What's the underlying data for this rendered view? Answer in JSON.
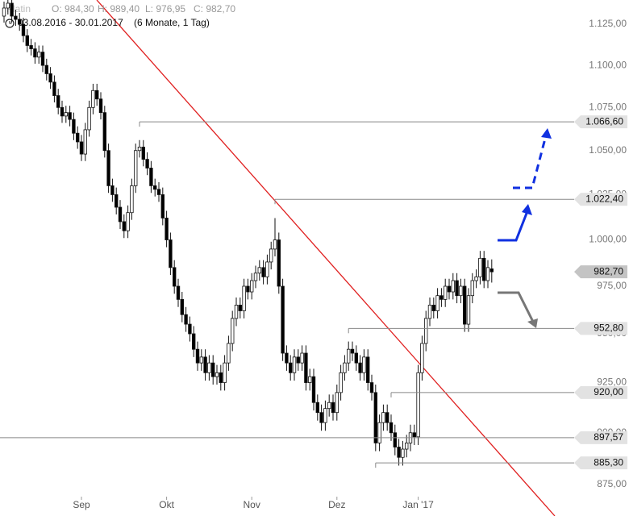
{
  "chart_data": {
    "type": "candlestick",
    "header": {
      "name": "Platin",
      "open": "O: 984,30",
      "high": "H: 989,40",
      "low": "L: 976,95",
      "close": "C: 982,70",
      "range": "03.08.2016 - 30.01.2017",
      "period": "(6 Monate, 1 Tag)"
    },
    "log_scale": true,
    "ylim": [
      860,
      1140
    ],
    "yticks": [
      {
        "value": 875,
        "label": "875,00"
      },
      {
        "value": 900,
        "label": "900,00"
      },
      {
        "value": 925,
        "label": "925,00"
      },
      {
        "value": 950,
        "label": "950,00"
      },
      {
        "value": 975,
        "label": "975,00"
      },
      {
        "value": 1000,
        "label": "1.000,00"
      },
      {
        "value": 1025,
        "label": "1.025,00"
      },
      {
        "value": 1050,
        "label": "1.050,00"
      },
      {
        "value": 1075,
        "label": "1.075,00"
      },
      {
        "value": 1100,
        "label": "1.100,00"
      },
      {
        "value": 1125,
        "label": "1.125,00"
      }
    ],
    "xticks": [
      {
        "value": 20,
        "label": "Sep"
      },
      {
        "value": 42,
        "label": "Okt"
      },
      {
        "value": 64,
        "label": "Nov"
      },
      {
        "value": 86,
        "label": "Dez"
      },
      {
        "value": 107,
        "label": "Jan '17"
      }
    ],
    "up_color": "#ffffff",
    "down_color": "#000000",
    "series": [
      {
        "open": [
          1130,
          1135,
          1138,
          1130,
          1128,
          1125,
          1118,
          1112,
          1110,
          1105,
          1108,
          1100,
          1095,
          1090,
          1082,
          1075,
          1070,
          1072,
          1068,
          1060,
          1055,
          1048,
          1062,
          1075,
          1085,
          1080,
          1072,
          1050,
          1030,
          1025,
          1018,
          1010,
          1005,
          1015,
          1030,
          1050,
          1052,
          1045,
          1040,
          1030,
          1028,
          1025,
          1012,
          1000,
          985,
          975,
          968,
          960,
          955,
          950,
          942,
          935,
          938,
          930,
          935,
          928,
          930,
          925,
          935,
          945,
          958,
          965,
          962,
          975,
          972,
          978,
          982,
          985,
          980,
          988,
          995,
          1000,
          975,
          940,
          935,
          930,
          938,
          935,
          940,
          925,
          928,
          915,
          910,
          905,
          912,
          915,
          910,
          920,
          930,
          935,
          942,
          940,
          935,
          930,
          938,
          925,
          920,
          895,
          905,
          910,
          905,
          900,
          893,
          888,
          892,
          895,
          900,
          898,
          930,
          945,
          958,
          965,
          962,
          970,
          968,
          975,
          972,
          978,
          970,
          975,
          955,
          970,
          978,
          980,
          990,
          978,
          984.3
        ],
        "high": [
          1139,
          1142,
          1142,
          1134,
          1132,
          1129,
          1122,
          1116,
          1114,
          1112,
          1112,
          1104,
          1099,
          1094,
          1086,
          1079,
          1076,
          1076,
          1072,
          1064,
          1059,
          1066,
          1079,
          1089,
          1089,
          1084,
          1076,
          1054,
          1034,
          1029,
          1022,
          1014,
          1019,
          1034,
          1054,
          1056,
          1056,
          1049,
          1044,
          1034,
          1032,
          1029,
          1016,
          1004,
          989,
          979,
          972,
          964,
          959,
          954,
          946,
          942,
          942,
          939,
          939,
          934,
          934,
          939,
          949,
          962,
          969,
          969,
          979,
          979,
          982,
          986,
          989,
          989,
          992,
          999,
          1012,
          1004,
          979,
          944,
          939,
          942,
          942,
          944,
          944,
          932,
          932,
          919,
          914,
          916,
          919,
          919,
          924,
          934,
          939,
          946,
          946,
          944,
          939,
          942,
          942,
          929,
          924,
          909,
          914,
          914,
          909,
          904,
          897,
          896,
          899,
          904,
          904,
          934,
          949,
          962,
          969,
          969,
          974,
          974,
          979,
          979,
          982,
          982,
          979,
          979,
          974,
          982,
          984,
          994,
          994,
          989,
          989.4
        ],
        "low": [
          1126,
          1131,
          1126,
          1124,
          1121,
          1114,
          1108,
          1106,
          1101,
          1101,
          1096,
          1091,
          1086,
          1078,
          1071,
          1066,
          1066,
          1064,
          1056,
          1051,
          1044,
          1044,
          1058,
          1071,
          1076,
          1068,
          1046,
          1026,
          1021,
          1014,
          1006,
          1001,
          1001,
          1011,
          1026,
          1046,
          1041,
          1036,
          1026,
          1024,
          1021,
          1008,
          996,
          981,
          971,
          964,
          956,
          951,
          946,
          938,
          931,
          931,
          926,
          926,
          924,
          924,
          921,
          921,
          931,
          941,
          954,
          958,
          958,
          968,
          968,
          974,
          978,
          976,
          976,
          984,
          991,
          971,
          936,
          931,
          926,
          926,
          931,
          931,
          921,
          921,
          911,
          906,
          901,
          901,
          908,
          906,
          906,
          916,
          926,
          931,
          936,
          931,
          926,
          926,
          921,
          916,
          891,
          891,
          901,
          901,
          896,
          889,
          884,
          884,
          888,
          891,
          894,
          894,
          926,
          941,
          954,
          958,
          958,
          964,
          964,
          968,
          968,
          966,
          966,
          951,
          951,
          966,
          974,
          976,
          974,
          974,
          976.95
        ],
        "close": [
          1135,
          1138,
          1130,
          1128,
          1125,
          1118,
          1112,
          1110,
          1105,
          1108,
          1100,
          1095,
          1090,
          1082,
          1075,
          1070,
          1072,
          1068,
          1060,
          1055,
          1048,
          1062,
          1075,
          1085,
          1080,
          1072,
          1050,
          1030,
          1025,
          1018,
          1010,
          1005,
          1015,
          1030,
          1050,
          1052,
          1045,
          1040,
          1030,
          1028,
          1025,
          1012,
          1000,
          985,
          975,
          968,
          960,
          955,
          950,
          942,
          935,
          938,
          930,
          935,
          928,
          930,
          925,
          935,
          945,
          958,
          965,
          962,
          975,
          972,
          978,
          982,
          985,
          980,
          988,
          995,
          1000,
          975,
          940,
          935,
          930,
          938,
          935,
          940,
          925,
          928,
          915,
          910,
          905,
          912,
          915,
          910,
          920,
          930,
          935,
          942,
          940,
          935,
          930,
          938,
          925,
          920,
          895,
          905,
          910,
          905,
          900,
          893,
          888,
          892,
          895,
          900,
          898,
          930,
          945,
          958,
          965,
          962,
          970,
          968,
          975,
          972,
          978,
          970,
          975,
          955,
          970,
          978,
          980,
          990,
          978,
          985,
          982.7
        ]
      }
    ],
    "last_label": "982,70",
    "levels": [
      {
        "value": 1066.6,
        "label": "1.066,60"
      },
      {
        "value": 1022.4,
        "label": "1.022,40"
      },
      {
        "value": 952.8,
        "label": "952,80"
      },
      {
        "value": 920,
        "label": "920,00"
      },
      {
        "value": 897.57,
        "label": "897,57"
      },
      {
        "value": 885.3,
        "label": "885,30"
      }
    ]
  }
}
